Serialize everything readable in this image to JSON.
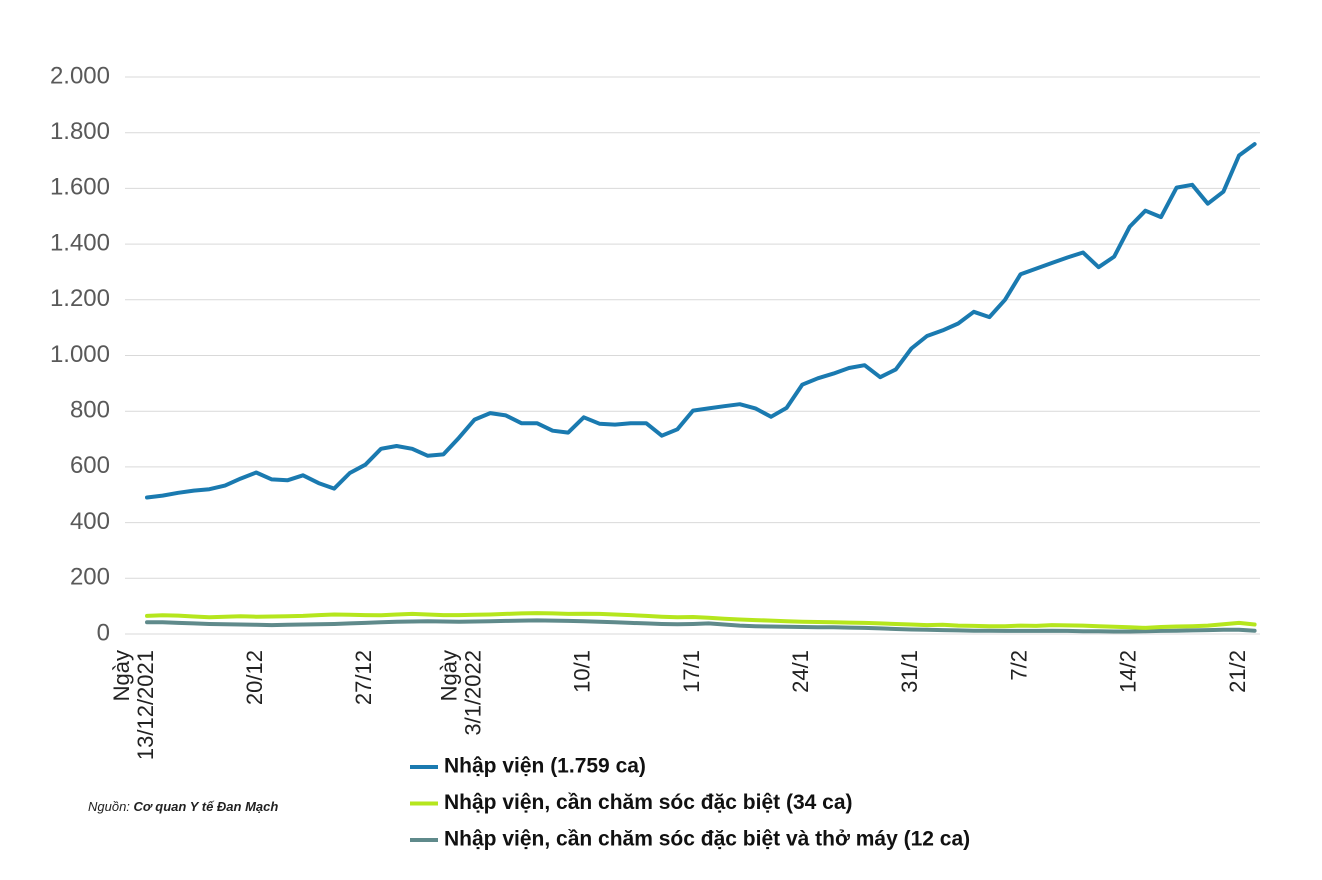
{
  "chart_data": {
    "type": "line",
    "categories": [
      "Ngày 13/12/2021",
      null,
      null,
      null,
      null,
      null,
      null,
      "20/12",
      null,
      null,
      null,
      null,
      null,
      null,
      "27/12",
      null,
      null,
      null,
      null,
      null,
      null,
      "Ngày 3/1/2022",
      null,
      null,
      null,
      null,
      null,
      null,
      "10/1",
      null,
      null,
      null,
      null,
      null,
      null,
      "17/1",
      null,
      null,
      null,
      null,
      null,
      null,
      "24/1",
      null,
      null,
      null,
      null,
      null,
      null,
      "31/1",
      null,
      null,
      null,
      null,
      null,
      null,
      "7/2",
      null,
      null,
      null,
      null,
      null,
      null,
      "14/2",
      null,
      null,
      null,
      null,
      null,
      null,
      "21/2",
      null
    ],
    "series": [
      {
        "name": "Nhập viện (1.759 ca)",
        "color": "#1a7ab0",
        "values": [
          490,
          497,
          507,
          515,
          520,
          533,
          558,
          580,
          555,
          552,
          570,
          542,
          522,
          578,
          608,
          665,
          675,
          665,
          640,
          645,
          705,
          770,
          793,
          785,
          757,
          757,
          730,
          723,
          778,
          755,
          752,
          757,
          757,
          712,
          735,
          802,
          810,
          818,
          825,
          810,
          780,
          812,
          895,
          918,
          935,
          955,
          965,
          922,
          950,
          1025,
          1070,
          1090,
          1115,
          1157,
          1138,
          1200,
          1292,
          1312,
          1332,
          1352,
          1370,
          1317,
          1355,
          1463,
          1520,
          1497,
          1603,
          1613,
          1545,
          1588,
          1718,
          1759
        ]
      },
      {
        "name": "Nhập viện, cần chăm sóc đặc biệt (34 ca)",
        "color": "#b5e61d",
        "values": [
          65,
          67,
          66,
          63,
          60,
          62,
          64,
          62,
          63,
          64,
          65,
          68,
          70,
          69,
          68,
          67,
          70,
          72,
          70,
          68,
          68,
          69,
          70,
          72,
          74,
          75,
          74,
          72,
          73,
          72,
          70,
          68,
          65,
          62,
          60,
          61,
          58,
          55,
          52,
          50,
          48,
          46,
          44,
          43,
          42,
          41,
          40,
          38,
          36,
          34,
          32,
          33,
          30,
          29,
          28,
          28,
          30,
          29,
          32,
          31,
          30,
          28,
          26,
          24,
          22,
          25,
          27,
          28,
          30,
          35,
          40,
          34
        ]
      },
      {
        "name": "Nhập viện, cần chăm sóc đặc biệt và thở máy (12 ca)",
        "color": "#5f8a8b",
        "values": [
          42,
          42,
          40,
          38,
          36,
          35,
          34,
          33,
          32,
          33,
          34,
          35,
          36,
          38,
          40,
          42,
          44,
          45,
          46,
          45,
          44,
          45,
          46,
          47,
          48,
          49,
          48,
          47,
          46,
          44,
          42,
          40,
          38,
          36,
          35,
          36,
          38,
          34,
          30,
          28,
          27,
          26,
          25,
          24,
          24,
          23,
          22,
          20,
          18,
          16,
          15,
          14,
          13,
          12,
          12,
          11,
          11,
          11,
          12,
          11,
          10,
          10,
          9,
          9,
          10,
          11,
          12,
          13,
          14,
          15,
          15,
          12
        ]
      }
    ],
    "ylim": [
      0,
      2000
    ],
    "yticks": [
      0,
      200,
      400,
      600,
      800,
      {
        "value": 1000,
        "label": "1.000"
      },
      {
        "value": 1200,
        "label": "1.200"
      },
      {
        "value": 1400,
        "label": "1.400"
      },
      {
        "value": 1600,
        "label": "1.600"
      },
      {
        "value": 1800,
        "label": "1.800"
      },
      {
        "value": 2000,
        "label": "2.000"
      }
    ],
    "grid": true,
    "source_label": "Nguồn:",
    "source": "Cơ quan Y tế Đan Mạch"
  }
}
